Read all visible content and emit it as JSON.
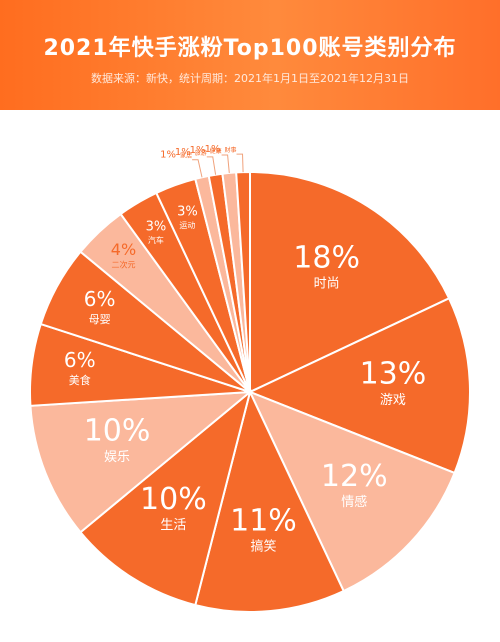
{
  "header": {
    "title": "2021年快手涨粉Top100账号类别分布",
    "subtitle": "数据来源：新快，统计周期：2021年1月1日至2021年12月31日"
  },
  "colors": {
    "header_bg": "#ff7a2e",
    "dark": "#f56a2a",
    "light": "#fbb89c",
    "white": "#ffffff"
  },
  "chart_data": {
    "type": "pie",
    "title": "2021年快手涨粉Top100账号类别分布",
    "unit": "%",
    "slices": [
      {
        "label": "时尚",
        "value": 18,
        "display": "18%",
        "color": "#f56a2a"
      },
      {
        "label": "游戏",
        "value": 13,
        "display": "13%",
        "color": "#f56a2a"
      },
      {
        "label": "情感",
        "value": 12,
        "display": "12%",
        "color": "#fbb89c"
      },
      {
        "label": "搞笑",
        "value": 11,
        "display": "11%",
        "color": "#f56a2a"
      },
      {
        "label": "生活",
        "value": 10,
        "display": "10%",
        "color": "#f56a2a"
      },
      {
        "label": "娱乐",
        "value": 10,
        "display": "10%",
        "color": "#fbb89c"
      },
      {
        "label": "美食",
        "value": 6,
        "display": "6%",
        "color": "#f56a2a"
      },
      {
        "label": "母婴",
        "value": 6,
        "display": "6%",
        "color": "#f56a2a"
      },
      {
        "label": "二次元",
        "value": 4,
        "display": "4%",
        "color": "#fbb89c"
      },
      {
        "label": "汽车",
        "value": 3,
        "display": "3%",
        "color": "#f56a2a"
      },
      {
        "label": "运动",
        "value": 3,
        "display": "3%",
        "color": "#f56a2a"
      },
      {
        "label": "家居",
        "value": 1,
        "display": "1%",
        "color": "#fbb89c"
      },
      {
        "label": "旅游",
        "value": 1,
        "display": "1%",
        "color": "#f56a2a"
      },
      {
        "label": "健康",
        "value": 1,
        "display": "1%",
        "color": "#fbb89c"
      },
      {
        "label": "财事",
        "value": 1,
        "display": "1%",
        "color": "#f56a2a"
      }
    ]
  }
}
